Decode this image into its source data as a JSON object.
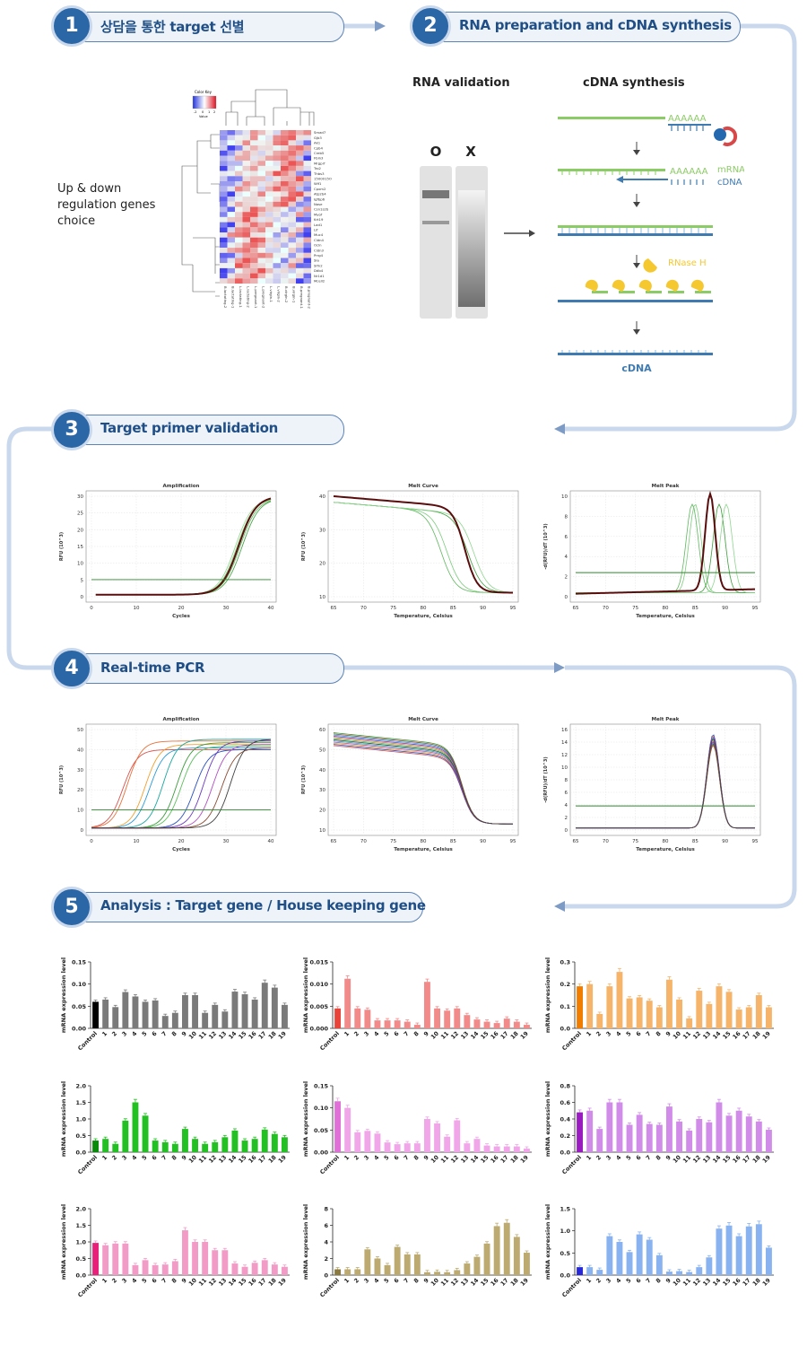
{
  "steps": [
    {
      "num": "1",
      "title": "상담을 통한 target 선별"
    },
    {
      "num": "2",
      "title": "RNA preparation and cDNA synthesis"
    },
    {
      "num": "3",
      "title": "Target primer validation"
    },
    {
      "num": "4",
      "title": "Real-time PCR"
    },
    {
      "num": "5",
      "title": "Analysis : Target gene / House keeping gene"
    }
  ],
  "step1": {
    "label_lines": [
      "Up & down",
      "regulation genes",
      "choice"
    ],
    "color_key": {
      "title": "Color Key",
      "ticks": [
        "-2",
        "0",
        "1",
        "2"
      ],
      "axis": "Value"
    },
    "genes": [
      "Smad7",
      "Gjb3",
      "Ak1",
      "Cpb4",
      "Creb5",
      "Fbln3",
      "Mrgprf",
      "Tro2",
      "Thbs3",
      "1500015O10Rik",
      "Wif1",
      "Cpxm2",
      "Atp2b4",
      "Igfbp6",
      "Nase",
      "Csn1s2b",
      "Myof",
      "Krt19",
      "Lad1",
      "Lif",
      "Muc4",
      "Cldn4",
      "Ocln",
      "Cldn3",
      "Prrg4",
      "Sla",
      "Slfn2",
      "Ddb4",
      "Nr1d1",
      "Mcell2"
    ],
    "samples": [
      "B.lactating-2",
      "B.lactating-1",
      "L.lactating-1",
      "L.lactating-2",
      "L.pregnant-1",
      "L.pregnant-2",
      "L.virgin-1",
      "L.virgin-2",
      "B.virgin-2",
      "B.virgin-1",
      "B.pregnant-1",
      "B.pregnant-2"
    ]
  },
  "step2": {
    "rna_validation": "RNA validation",
    "cdna_synthesis": "cDNA synthesis",
    "lane_o": "O",
    "lane_x": "X",
    "polyA": "AAAAAA",
    "mrna": "mRNA",
    "cdna": "cDNA",
    "rnase": "RNase H",
    "final": "cDNA"
  },
  "validation_panels": [
    {
      "title": "Amplification",
      "xlabel": "Cycles",
      "ylabel": "RFU (10^3)",
      "xticks": [
        "0",
        "10",
        "20",
        "30",
        "40"
      ],
      "yticks": [
        "0",
        "5",
        "10",
        "15",
        "20",
        "25",
        "30"
      ]
    },
    {
      "title": "Melt Curve",
      "xlabel": "Temperature, Celsius",
      "ylabel": "RFU (10^3)",
      "xticks": [
        "65",
        "70",
        "75",
        "80",
        "85",
        "90",
        "95"
      ],
      "yticks": [
        "10",
        "20",
        "30",
        "40"
      ]
    },
    {
      "title": "Melt Peak",
      "xlabel": "Temperature, Celsius",
      "ylabel": "-d(RFU)/dT (10^3)",
      "xticks": [
        "65",
        "70",
        "75",
        "80",
        "85",
        "90",
        "95"
      ],
      "yticks": [
        "0",
        "2",
        "4",
        "6",
        "8",
        "10"
      ]
    }
  ],
  "pcr_panels": [
    {
      "title": "Amplification",
      "xlabel": "Cycles",
      "ylabel": "RFU (10^3)",
      "xticks": [
        "0",
        "10",
        "20",
        "30",
        "40"
      ],
      "yticks": [
        "0",
        "10",
        "20",
        "30",
        "40",
        "50"
      ]
    },
    {
      "title": "Melt Curve",
      "xlabel": "Temperature, Celsius",
      "ylabel": "RFU (10^3)",
      "xticks": [
        "65",
        "70",
        "75",
        "80",
        "85",
        "90",
        "95"
      ],
      "yticks": [
        "10",
        "20",
        "30",
        "40",
        "50",
        "60"
      ]
    },
    {
      "title": "Melt Peak",
      "xlabel": "Temperature, Celsius",
      "ylabel": "-d(RFU)/dT (10^3)",
      "xticks": [
        "65",
        "70",
        "75",
        "80",
        "85",
        "90",
        "95"
      ],
      "yticks": [
        "0",
        "2",
        "4",
        "6",
        "8",
        "10",
        "12",
        "14",
        "16"
      ]
    }
  ],
  "chart_data": [
    {
      "type": "bar",
      "color": "#7a7a7a",
      "first_color": "#000000",
      "ylabel": "mRNA expression level",
      "yticks": [
        "0.00",
        "0.05",
        "0.10",
        "0.15"
      ],
      "ylim": [
        0,
        0.15
      ],
      "categories": [
        "Control",
        "1",
        "2",
        "3",
        "4",
        "5",
        "6",
        "7",
        "8",
        "9",
        "10",
        "11",
        "12",
        "13",
        "14",
        "15",
        "16",
        "17",
        "18",
        "19"
      ],
      "values": [
        0.06,
        0.065,
        0.048,
        0.082,
        0.072,
        0.06,
        0.063,
        0.028,
        0.035,
        0.075,
        0.075,
        0.035,
        0.053,
        0.038,
        0.083,
        0.077,
        0.065,
        0.103,
        0.092,
        0.053
      ]
    },
    {
      "type": "bar",
      "color": "#f28a8a",
      "first_color": "#e8443a",
      "ylabel": "mRNA expression level",
      "yticks": [
        "0.000",
        "0.005",
        "0.010",
        "0.015"
      ],
      "ylim": [
        0,
        0.015
      ],
      "categories": [
        "Control",
        "1",
        "2",
        "3",
        "4",
        "5",
        "6",
        "7",
        "8",
        "9",
        "10",
        "11",
        "12",
        "13",
        "14",
        "15",
        "16",
        "17",
        "18",
        "19"
      ],
      "values": [
        0.0045,
        0.0112,
        0.0045,
        0.0042,
        0.0018,
        0.0018,
        0.0018,
        0.0015,
        0.0008,
        0.0105,
        0.0045,
        0.004,
        0.0045,
        0.003,
        0.002,
        0.0015,
        0.0012,
        0.0022,
        0.0015,
        0.0008
      ]
    },
    {
      "type": "bar",
      "color": "#f5b46a",
      "first_color": "#f07c00",
      "ylabel": "mRNA expression level",
      "yticks": [
        "0.0",
        "0.1",
        "0.2",
        "0.3"
      ],
      "ylim": [
        0,
        0.3
      ],
      "categories": [
        "Control",
        "1",
        "2",
        "3",
        "4",
        "5",
        "6",
        "7",
        "8",
        "9",
        "10",
        "11",
        "12",
        "13",
        "14",
        "15",
        "16",
        "17",
        "18",
        "19"
      ],
      "values": [
        0.19,
        0.2,
        0.065,
        0.19,
        0.255,
        0.135,
        0.14,
        0.125,
        0.095,
        0.22,
        0.13,
        0.045,
        0.17,
        0.11,
        0.19,
        0.165,
        0.085,
        0.095,
        0.15,
        0.095
      ]
    },
    {
      "type": "bar",
      "color": "#22c022",
      "first_color": "#0a8a0a",
      "ylabel": "mRNA expression level",
      "yticks": [
        "0.0",
        "0.5",
        "1.0",
        "1.5",
        "2.0"
      ],
      "ylim": [
        0,
        2.0
      ],
      "categories": [
        "Control",
        "1",
        "2",
        "3",
        "4",
        "5",
        "6",
        "7",
        "8",
        "9",
        "10",
        "11",
        "12",
        "13",
        "14",
        "15",
        "16",
        "17",
        "18",
        "19"
      ],
      "values": [
        0.35,
        0.4,
        0.25,
        0.95,
        1.5,
        1.1,
        0.35,
        0.3,
        0.25,
        0.7,
        0.4,
        0.25,
        0.3,
        0.45,
        0.65,
        0.35,
        0.4,
        0.68,
        0.55,
        0.45
      ]
    },
    {
      "type": "bar",
      "color": "#f0a6e8",
      "first_color": "#e070d8",
      "ylabel": "mRNA expression level",
      "yticks": [
        "0.00",
        "0.05",
        "0.10",
        "0.15"
      ],
      "ylim": [
        0,
        0.15
      ],
      "categories": [
        "Control",
        "1",
        "2",
        "3",
        "4",
        "5",
        "6",
        "7",
        "8",
        "9",
        "10",
        "11",
        "12",
        "13",
        "14",
        "15",
        "16",
        "17",
        "18",
        "19"
      ],
      "values": [
        0.115,
        0.1,
        0.045,
        0.048,
        0.042,
        0.022,
        0.018,
        0.02,
        0.02,
        0.075,
        0.065,
        0.035,
        0.072,
        0.02,
        0.03,
        0.015,
        0.013,
        0.013,
        0.013,
        0.008
      ]
    },
    {
      "type": "bar",
      "color": "#d08ce8",
      "first_color": "#9a1cc0",
      "ylabel": "mRNA expression level",
      "yticks": [
        "0.0",
        "0.2",
        "0.4",
        "0.6",
        "0.8"
      ],
      "ylim": [
        0,
        0.8
      ],
      "categories": [
        "Control",
        "1",
        "2",
        "3",
        "4",
        "5",
        "6",
        "7",
        "8",
        "9",
        "10",
        "11",
        "12",
        "13",
        "14",
        "15",
        "16",
        "17",
        "18",
        "19"
      ],
      "values": [
        0.48,
        0.5,
        0.28,
        0.6,
        0.6,
        0.33,
        0.45,
        0.34,
        0.33,
        0.55,
        0.37,
        0.26,
        0.4,
        0.36,
        0.6,
        0.44,
        0.5,
        0.43,
        0.37,
        0.27
      ]
    },
    {
      "type": "bar",
      "color": "#f29bc6",
      "first_color": "#e8207a",
      "ylabel": "mRNA expression level",
      "yticks": [
        "0.0",
        "0.5",
        "1.0",
        "1.5",
        "2.0"
      ],
      "ylim": [
        0,
        2.0
      ],
      "categories": [
        "Control",
        "1",
        "2",
        "3",
        "4",
        "5",
        "6",
        "7",
        "8",
        "9",
        "10",
        "11",
        "12",
        "13",
        "14",
        "15",
        "16",
        "17",
        "18",
        "19"
      ],
      "values": [
        0.97,
        0.9,
        0.95,
        0.95,
        0.3,
        0.45,
        0.3,
        0.32,
        0.42,
        1.35,
        1.0,
        1.0,
        0.75,
        0.75,
        0.35,
        0.25,
        0.37,
        0.45,
        0.32,
        0.25
      ]
    },
    {
      "type": "bar",
      "color": "#bcaa70",
      "first_color": "#8a7a40",
      "ylabel": "mRNA expression level",
      "yticks": [
        "0",
        "2",
        "4",
        "6",
        "8"
      ],
      "ylim": [
        0,
        8
      ],
      "categories": [
        "Control",
        "1",
        "2",
        "3",
        "4",
        "5",
        "6",
        "7",
        "8",
        "9",
        "10",
        "11",
        "12",
        "13",
        "14",
        "15",
        "16",
        "17",
        "18",
        "19"
      ],
      "values": [
        0.7,
        0.7,
        0.7,
        3.1,
        2.0,
        1.2,
        3.4,
        2.5,
        2.5,
        0.35,
        0.4,
        0.35,
        0.6,
        1.4,
        2.2,
        3.8,
        5.9,
        6.3,
        4.6,
        2.7
      ]
    },
    {
      "type": "bar",
      "color": "#88b2f0",
      "first_color": "#2828d8",
      "ylabel": "mRNA expression level",
      "yticks": [
        "0.0",
        "0.5",
        "1.0",
        "1.5"
      ],
      "ylim": [
        0,
        1.5
      ],
      "categories": [
        "Control",
        "1",
        "2",
        "3",
        "4",
        "5",
        "6",
        "7",
        "8",
        "9",
        "10",
        "11",
        "12",
        "13",
        "14",
        "15",
        "16",
        "17",
        "18",
        "19"
      ],
      "values": [
        0.18,
        0.18,
        0.12,
        0.88,
        0.75,
        0.52,
        0.92,
        0.8,
        0.45,
        0.08,
        0.09,
        0.07,
        0.18,
        0.4,
        1.05,
        1.12,
        0.88,
        1.1,
        1.15,
        0.62
      ]
    }
  ]
}
